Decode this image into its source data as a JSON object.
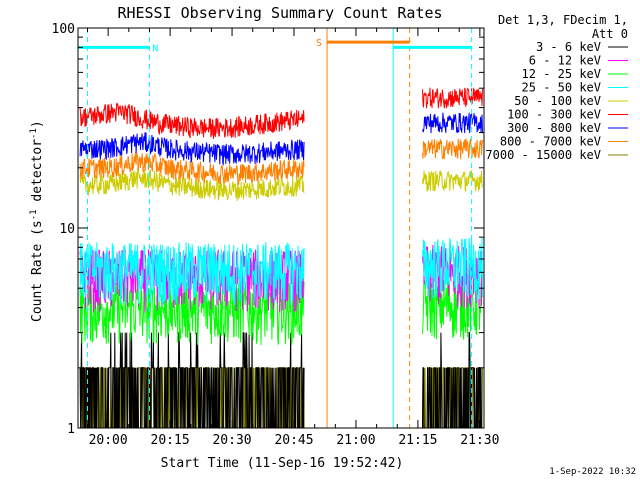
{
  "chart_data": {
    "type": "line",
    "title": "RHESSI Observing Summary Count Rates",
    "xlabel": "Start Time (11-Sep-16 19:52:42)",
    "ylabel": "Count Rate (s⁻¹ detector⁻¹)",
    "ylabel_main": "Count Rate (s",
    "ylabel_sup1": "-1",
    "ylabel_mid": " detector",
    "ylabel_sup2": "-1",
    "ylabel_end": ")",
    "y_scale": "log",
    "ylim": [
      1,
      100
    ],
    "xlim": [
      "19:52:42",
      "21:31:00"
    ],
    "x_ticks": [
      "20:00",
      "20:15",
      "20:30",
      "20:45",
      "21:00",
      "21:15",
      "21:30"
    ],
    "y_ticks": [
      "1",
      "10",
      "100"
    ],
    "legend_header": [
      "Det 1,3, FDecim 1,",
      "Att 0"
    ],
    "series": [
      {
        "name": "3 - 6 keV",
        "color": "#000000",
        "level": 1.45
      },
      {
        "name": "6 - 12 keV",
        "color": "#ff00ff",
        "level": 5.8
      },
      {
        "name": "12 - 25 keV",
        "color": "#00ff00",
        "level": 4.0
      },
      {
        "name": "25 - 50 keV",
        "color": "#00ffff",
        "level": 6.3
      },
      {
        "name": "50 - 100 keV",
        "color": "#cccc00",
        "level": 16.5
      },
      {
        "name": "100 - 300 keV",
        "color": "#ff0000",
        "level": 36
      },
      {
        "name": "300 - 800 keV",
        "color": "#0000ff",
        "level": 25
      },
      {
        "name": "800 - 7000 keV",
        "color": "#ff8000",
        "level": 20
      },
      {
        "name": "7000 - 15000 keV",
        "color": "#808000",
        "level": 1.3
      }
    ],
    "data_gaps": [
      {
        "start": "20:47:30",
        "end": "21:16:00"
      }
    ],
    "flag_bars": [
      {
        "label": "N",
        "color": "#00ffff",
        "ranges": [
          [
            "19:52:42",
            "20:10:00"
          ],
          [
            "21:09:00",
            "21:28:00"
          ]
        ],
        "level": 80
      },
      {
        "label": "S",
        "color": "#ff8000",
        "ranges": [
          [
            "20:53:00",
            "21:13:00"
          ]
        ],
        "level": 85
      }
    ],
    "vertical_markers": [
      {
        "time": "19:55:00",
        "color": "#00ffff",
        "style": "dashed"
      },
      {
        "time": "20:10:00",
        "color": "#00ffff",
        "style": "dashed"
      },
      {
        "time": "20:53:00",
        "color": "#ff8000",
        "style": "solid"
      },
      {
        "time": "21:09:00",
        "color": "#00ffff",
        "style": "solid"
      },
      {
        "time": "21:13:00",
        "color": "#ff8000",
        "style": "dashed"
      },
      {
        "time": "21:28:00",
        "color": "#00ffff",
        "style": "dashed"
      }
    ],
    "grid": false,
    "legend_position": "top-right outside"
  },
  "footer_date": "1-Sep-2022 10:32"
}
